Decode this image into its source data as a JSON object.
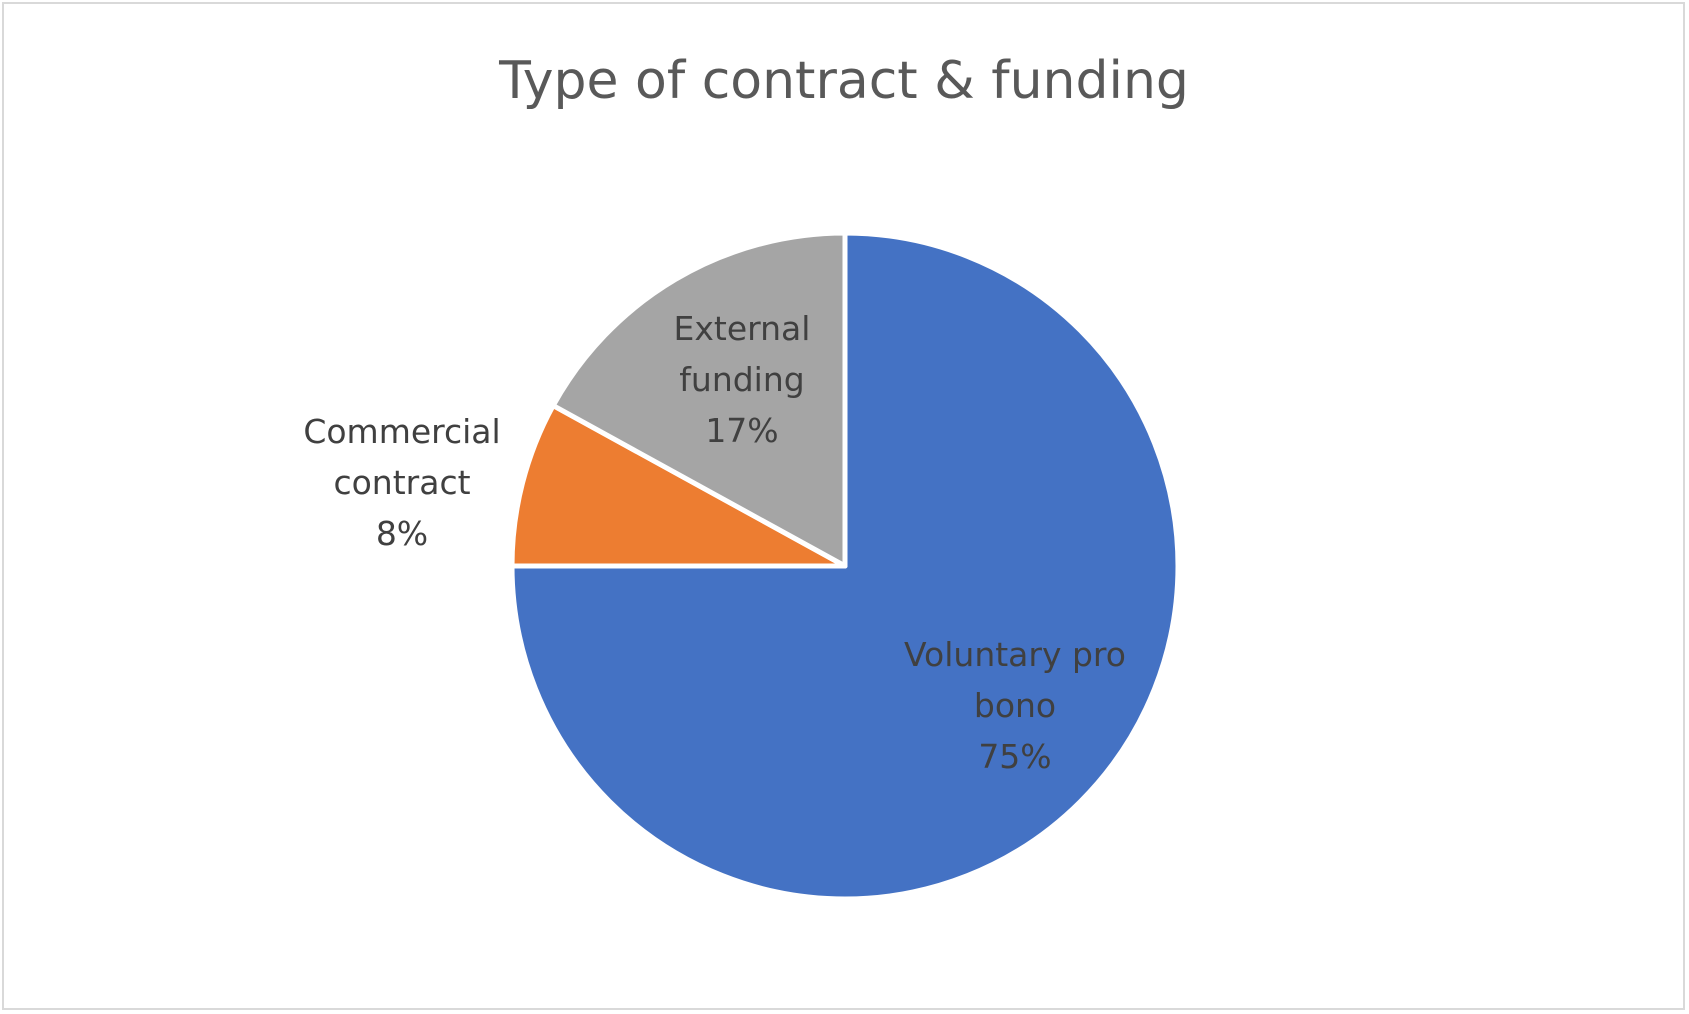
{
  "chart_data": {
    "type": "pie",
    "title": "Type of contract & funding",
    "slices": [
      {
        "label_lines": [
          "Voluntary pro",
          "bono"
        ],
        "percent_label": "75%",
        "value": 75,
        "color": "#4472C4"
      },
      {
        "label_lines": [
          "Commercial",
          "contract"
        ],
        "percent_label": "8%",
        "value": 8,
        "color": "#ED7D31"
      },
      {
        "label_lines": [
          "External",
          "funding"
        ],
        "percent_label": "17%",
        "value": 17,
        "color": "#A5A5A5"
      }
    ],
    "legend": "none",
    "grid": false
  }
}
